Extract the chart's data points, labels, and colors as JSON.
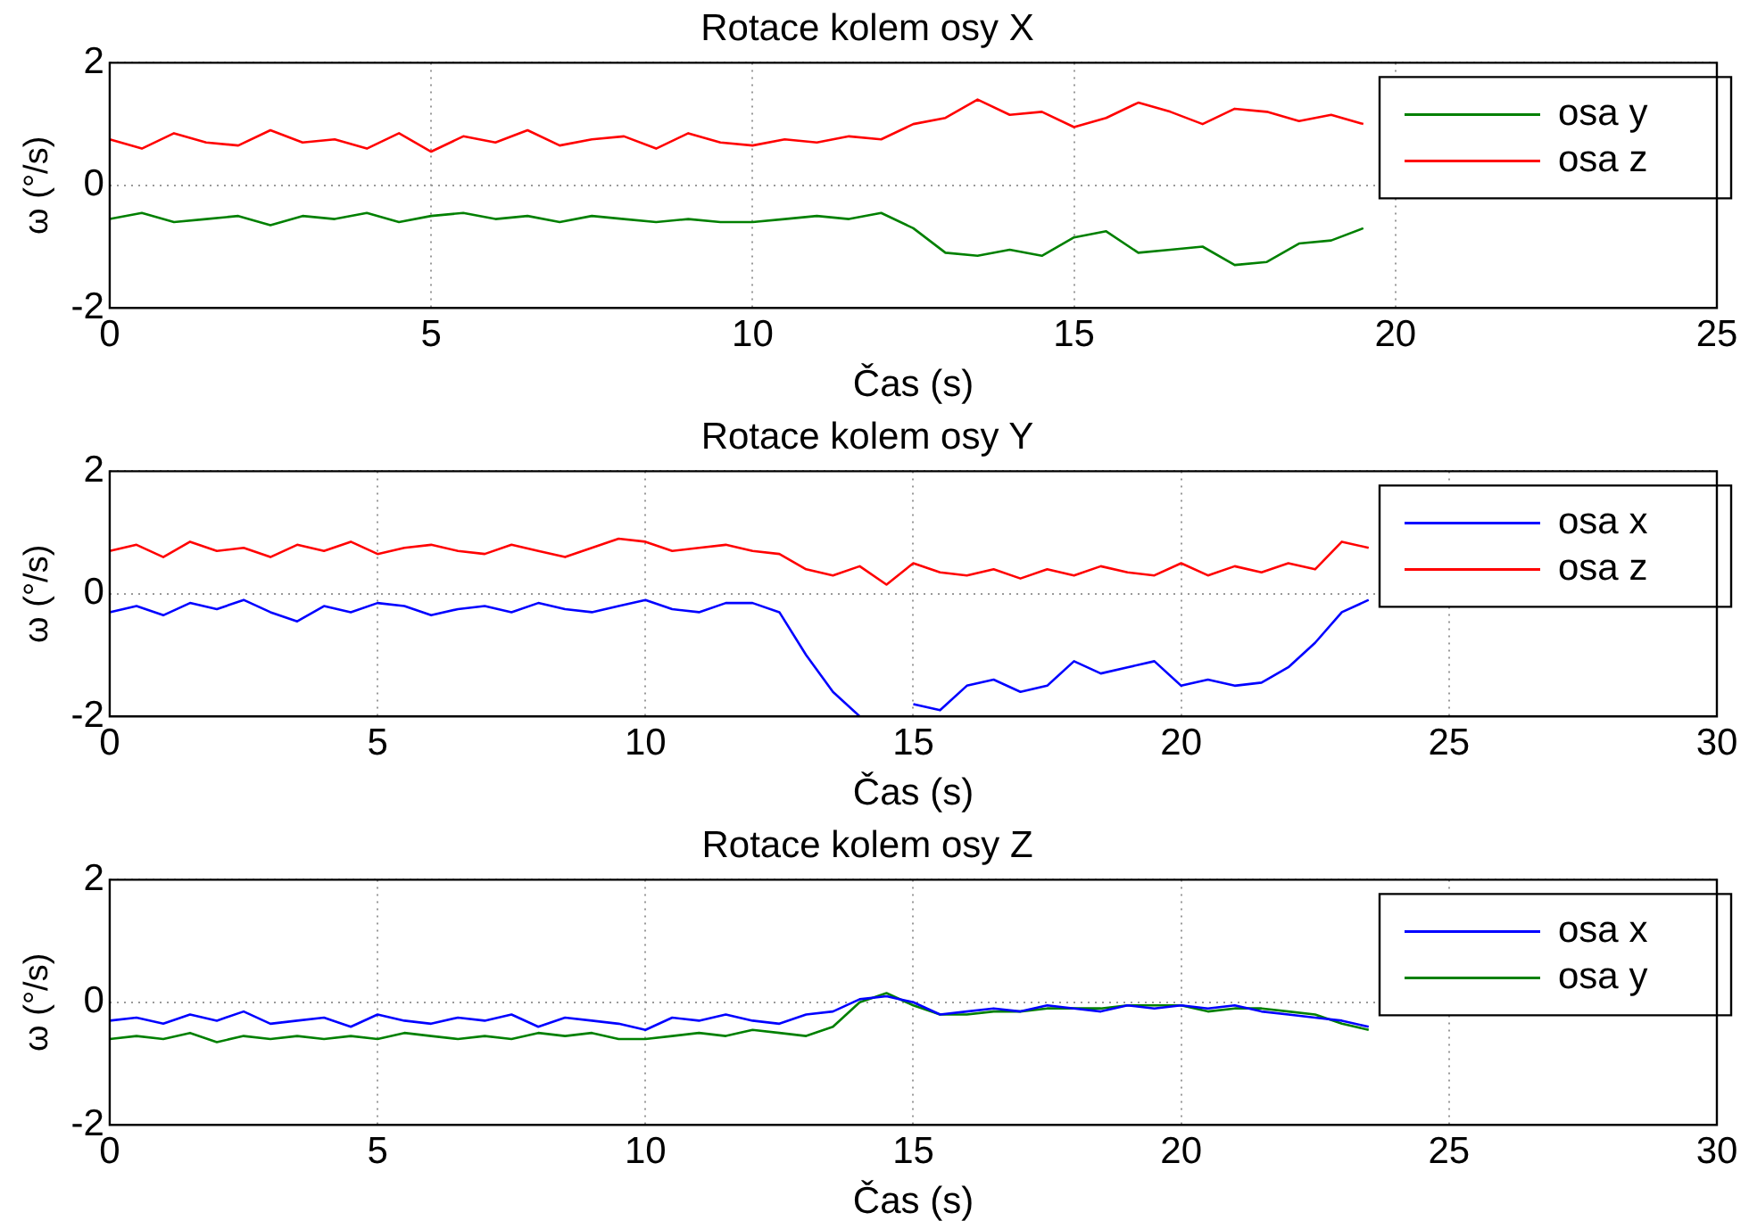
{
  "chart_data": [
    {
      "type": "line",
      "title": "Rotace kolem osy X",
      "xlabel": "Čas (s)",
      "ylabel": "ω (°/s)",
      "xlim": [
        0,
        25
      ],
      "xticks": [
        0,
        5,
        10,
        15,
        20,
        25
      ],
      "ylim": [
        -2,
        2
      ],
      "yticks": [
        -2,
        0,
        2
      ],
      "grid": true,
      "legend": "top right",
      "marker": "none",
      "x": [
        0,
        0.5,
        1,
        1.5,
        2,
        2.5,
        3,
        3.5,
        4,
        4.5,
        5,
        5.5,
        6,
        6.5,
        7,
        7.5,
        8,
        8.5,
        9,
        9.5,
        10,
        10.5,
        11,
        11.5,
        12,
        12.5,
        13,
        13.5,
        14,
        14.5,
        15,
        15.5,
        16,
        16.5,
        17,
        17.5,
        18,
        18.5,
        19,
        19.5
      ],
      "series": [
        {
          "name": "osa y",
          "color": "#008000",
          "values": [
            -0.55,
            -0.45,
            -0.6,
            -0.55,
            -0.5,
            -0.65,
            -0.5,
            -0.55,
            -0.45,
            -0.6,
            -0.5,
            -0.45,
            -0.55,
            -0.5,
            -0.6,
            -0.5,
            -0.55,
            -0.6,
            -0.55,
            -0.6,
            -0.6,
            -0.55,
            -0.5,
            -0.55,
            -0.45,
            -0.7,
            -1.1,
            -1.15,
            -1.05,
            -1.15,
            -0.85,
            -0.75,
            -1.1,
            -1.05,
            -1.0,
            -1.3,
            -1.25,
            -0.95,
            -0.9,
            -0.7
          ]
        },
        {
          "name": "osa z",
          "color": "#ff0000",
          "values": [
            0.75,
            0.6,
            0.85,
            0.7,
            0.65,
            0.9,
            0.7,
            0.75,
            0.6,
            0.85,
            0.55,
            0.8,
            0.7,
            0.9,
            0.65,
            0.75,
            0.8,
            0.6,
            0.85,
            0.7,
            0.65,
            0.75,
            0.7,
            0.8,
            0.75,
            1.0,
            1.1,
            1.4,
            1.15,
            1.2,
            0.95,
            1.1,
            1.35,
            1.2,
            1.0,
            1.25,
            1.2,
            1.05,
            1.15,
            1.0
          ]
        }
      ]
    },
    {
      "type": "line",
      "title": "Rotace kolem osy Y",
      "xlabel": "Čas (s)",
      "ylabel": "ω (°/s)",
      "xlim": [
        0,
        30
      ],
      "xticks": [
        0,
        5,
        10,
        15,
        20,
        25,
        30
      ],
      "ylim": [
        -2,
        2
      ],
      "yticks": [
        -2,
        0,
        2
      ],
      "grid": true,
      "legend": "top right",
      "marker": "none",
      "x": [
        0,
        0.5,
        1,
        1.5,
        2,
        2.5,
        3,
        3.5,
        4,
        4.5,
        5,
        5.5,
        6,
        6.5,
        7,
        7.5,
        8,
        8.5,
        9,
        9.5,
        10,
        10.5,
        11,
        11.5,
        12,
        12.5,
        13,
        13.5,
        14,
        14.5,
        15,
        15.5,
        16,
        16.5,
        17,
        17.5,
        18,
        18.5,
        19,
        19.5,
        20,
        20.5,
        21,
        21.5,
        22,
        22.5,
        23,
        23.5
      ],
      "series": [
        {
          "name": "osa x",
          "color": "#0000ff",
          "values": [
            -0.3,
            -0.2,
            -0.35,
            -0.15,
            -0.25,
            -0.1,
            -0.3,
            -0.45,
            -0.2,
            -0.3,
            -0.15,
            -0.2,
            -0.35,
            -0.25,
            -0.2,
            -0.3,
            -0.15,
            -0.25,
            -0.3,
            -0.2,
            -0.1,
            -0.25,
            -0.3,
            -0.15,
            -0.15,
            -0.3,
            -1.0,
            -1.6,
            -2.0,
            null,
            -1.8,
            -1.9,
            -1.5,
            -1.4,
            -1.6,
            -1.5,
            -1.1,
            -1.3,
            -1.2,
            -1.1,
            -1.5,
            -1.4,
            -1.5,
            -1.45,
            -1.2,
            -0.8,
            -0.3,
            -0.1
          ]
        },
        {
          "name": "osa z",
          "color": "#ff0000",
          "values": [
            0.7,
            0.8,
            0.6,
            0.85,
            0.7,
            0.75,
            0.6,
            0.8,
            0.7,
            0.85,
            0.65,
            0.75,
            0.8,
            0.7,
            0.65,
            0.8,
            0.7,
            0.6,
            0.75,
            0.9,
            0.85,
            0.7,
            0.75,
            0.8,
            0.7,
            0.65,
            0.4,
            0.3,
            0.45,
            0.15,
            0.5,
            0.35,
            0.3,
            0.4,
            0.25,
            0.4,
            0.3,
            0.45,
            0.35,
            0.3,
            0.5,
            0.3,
            0.45,
            0.35,
            0.5,
            0.4,
            0.85,
            0.75
          ]
        }
      ]
    },
    {
      "type": "line",
      "title": "Rotace kolem osy Z",
      "xlabel": "Čas (s)",
      "ylabel": "ω (°/s)",
      "xlim": [
        0,
        30
      ],
      "xticks": [
        0,
        5,
        10,
        15,
        20,
        25,
        30
      ],
      "ylim": [
        -2,
        2
      ],
      "yticks": [
        -2,
        0,
        2
      ],
      "grid": true,
      "legend": "top right",
      "marker": "none",
      "x": [
        0,
        0.5,
        1,
        1.5,
        2,
        2.5,
        3,
        3.5,
        4,
        4.5,
        5,
        5.5,
        6,
        6.5,
        7,
        7.5,
        8,
        8.5,
        9,
        9.5,
        10,
        10.5,
        11,
        11.5,
        12,
        12.5,
        13,
        13.5,
        14,
        14.5,
        15,
        15.5,
        16,
        16.5,
        17,
        17.5,
        18,
        18.5,
        19,
        19.5,
        20,
        20.5,
        21,
        21.5,
        22,
        22.5,
        23,
        23.5
      ],
      "series": [
        {
          "name": "osa x",
          "color": "#0000ff",
          "values": [
            -0.3,
            -0.25,
            -0.35,
            -0.2,
            -0.3,
            -0.15,
            -0.35,
            -0.3,
            -0.25,
            -0.4,
            -0.2,
            -0.3,
            -0.35,
            -0.25,
            -0.3,
            -0.2,
            -0.4,
            -0.25,
            -0.3,
            -0.35,
            -0.45,
            -0.25,
            -0.3,
            -0.2,
            -0.3,
            -0.35,
            -0.2,
            -0.15,
            0.05,
            0.1,
            0.0,
            -0.2,
            -0.15,
            -0.1,
            -0.15,
            -0.05,
            -0.1,
            -0.15,
            -0.05,
            -0.1,
            -0.05,
            -0.1,
            -0.05,
            -0.15,
            -0.2,
            -0.25,
            -0.3,
            -0.4
          ]
        },
        {
          "name": "osa y",
          "color": "#008000",
          "values": [
            -0.6,
            -0.55,
            -0.6,
            -0.5,
            -0.65,
            -0.55,
            -0.6,
            -0.55,
            -0.6,
            -0.55,
            -0.6,
            -0.5,
            -0.55,
            -0.6,
            -0.55,
            -0.6,
            -0.5,
            -0.55,
            -0.5,
            -0.6,
            -0.6,
            -0.55,
            -0.5,
            -0.55,
            -0.45,
            -0.5,
            -0.55,
            -0.4,
            0.0,
            0.15,
            -0.05,
            -0.2,
            -0.2,
            -0.15,
            -0.15,
            -0.1,
            -0.1,
            -0.1,
            -0.05,
            -0.05,
            -0.05,
            -0.15,
            -0.1,
            -0.1,
            -0.15,
            -0.2,
            -0.35,
            -0.45
          ]
        }
      ]
    }
  ]
}
